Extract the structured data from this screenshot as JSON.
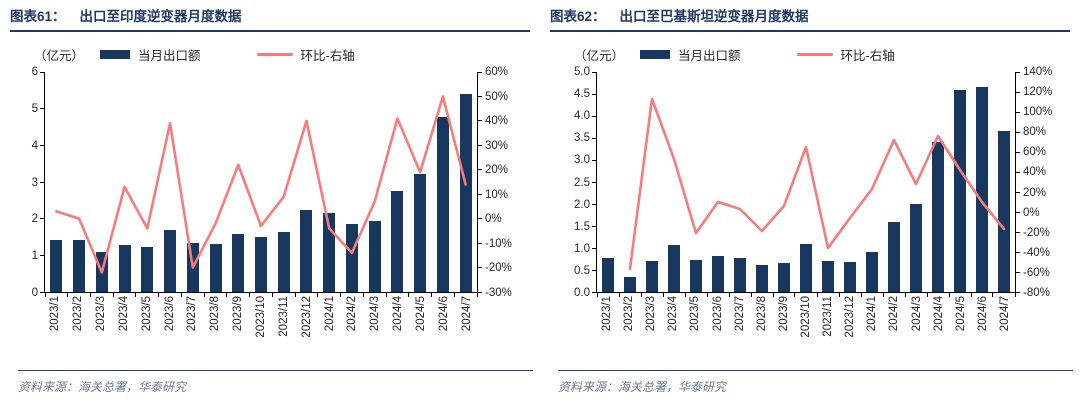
{
  "colors": {
    "bar": "#17375e",
    "line": "#f87b7b",
    "title": "#1f3864",
    "axis_text": "#262626",
    "source_text": "#6d7a8c"
  },
  "source_note": "资料来源：海关总署，华泰研究",
  "charts": [
    {
      "title_label": "图表61：",
      "title": "出口至印度逆变器月度数据",
      "unit_label": "（亿元）",
      "legend": {
        "bar_label": "当月出口额",
        "line_label": "环比-右轴"
      },
      "chart_data": {
        "type": "bar+line",
        "title": "出口至印度逆变器月度数据",
        "categories": [
          "2023/1",
          "2023/2",
          "2023/3",
          "2023/4",
          "2023/5",
          "2023/6",
          "2023/7",
          "2023/8",
          "2023/9",
          "2023/10",
          "2023/11",
          "2023/12",
          "2024/1",
          "2024/2",
          "2024/3",
          "2024/4",
          "2024/5",
          "2024/6",
          "2024/7"
        ],
        "series": [
          {
            "name": "当月出口额",
            "type": "bar",
            "axis": "left",
            "unit": "亿元",
            "values": [
              1.42,
              1.42,
              1.1,
              1.27,
              1.23,
              1.7,
              1.35,
              1.32,
              1.58,
              1.51,
              1.64,
              2.25,
              2.15,
              1.85,
              1.95,
              2.75,
              3.23,
              4.76,
              5.4
            ]
          },
          {
            "name": "环比-右轴",
            "type": "line",
            "axis": "right",
            "unit": "%",
            "values": [
              3,
              0,
              -22,
              13,
              -4,
              39,
              -20,
              -2,
              22,
              -3,
              9,
              40,
              -4,
              -14,
              7,
              41,
              19,
              50,
              14
            ]
          }
        ],
        "left_axis": {
          "min": 0,
          "max": 6,
          "step": 1,
          "decimals": 0,
          "suffix": ""
        },
        "right_axis": {
          "min": -30,
          "max": 60,
          "step": 10,
          "decimals": 0,
          "suffix": "%"
        },
        "grid": false,
        "legend_position": "top"
      }
    },
    {
      "title_label": "图表62：",
      "title": "出口至巴基斯坦逆变器月度数据",
      "unit_label": "（亿元）",
      "legend": {
        "bar_label": "当月出口额",
        "line_label": "环比-右轴"
      },
      "chart_data": {
        "type": "bar+line",
        "title": "出口至巴基斯坦逆变器月度数据",
        "categories": [
          "2023/1",
          "2023/2",
          "2023/3",
          "2023/4",
          "2023/5",
          "2023/6",
          "2023/7",
          "2023/8",
          "2023/9",
          "2023/10",
          "2023/11",
          "2023/12",
          "2024/1",
          "2024/2",
          "2024/3",
          "2024/4",
          "2024/5",
          "2024/6",
          "2024/7"
        ],
        "series": [
          {
            "name": "当月出口额",
            "type": "bar",
            "axis": "left",
            "unit": "亿元",
            "values": [
              0.78,
              0.33,
              0.71,
              1.06,
              0.73,
              0.81,
              0.77,
              0.62,
              0.67,
              1.09,
              0.71,
              0.69,
              0.91,
              1.58,
              2.0,
              3.42,
              4.59,
              4.67,
              3.65
            ]
          },
          {
            "name": "环比-右轴",
            "type": "line",
            "axis": "right",
            "unit": "%",
            "values": [
              null,
              -57,
              113,
              53,
              -21,
              10,
              3,
              -19,
              6,
              65,
              -36,
              -6,
              23,
              72,
              28,
              76,
              42,
              10,
              -17
            ]
          }
        ],
        "left_axis": {
          "min": 0,
          "max": 5,
          "step": 0.5,
          "decimals": 1,
          "suffix": ""
        },
        "right_axis": {
          "min": -80,
          "max": 140,
          "step": 20,
          "decimals": 0,
          "suffix": "%"
        },
        "grid": false,
        "legend_position": "top"
      }
    }
  ]
}
